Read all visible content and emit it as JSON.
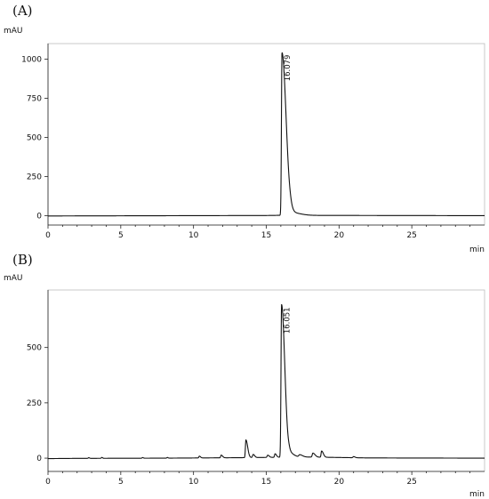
{
  "chart_data": [
    {
      "type": "line",
      "panel_label": "(A)",
      "ylabel": "mAU",
      "xlabel": "min",
      "xlim": [
        0,
        30
      ],
      "ylim": [
        -60,
        1100
      ],
      "x_ticks": [
        0,
        5,
        10,
        15,
        20,
        25
      ],
      "y_ticks": [
        0,
        250,
        500,
        750,
        1000
      ],
      "baseline": [
        [
          0,
          -2
        ],
        [
          5,
          -1
        ],
        [
          10,
          0
        ],
        [
          15,
          1
        ],
        [
          15.8,
          2
        ],
        [
          30,
          0
        ]
      ],
      "peaks": [
        {
          "rt": 16.08,
          "height": 1040,
          "width": 0.09,
          "tail": 0.28,
          "label": "16.079"
        },
        {
          "rt": 16.7,
          "height": 18,
          "width": 0.25,
          "tail": 0.6
        }
      ],
      "annotation": "16.079"
    },
    {
      "type": "line",
      "panel_label": "(B)",
      "ylabel": "mAU",
      "xlabel": "min",
      "xlim": [
        0,
        30
      ],
      "ylim": [
        -60,
        760
      ],
      "x_ticks": [
        0,
        5,
        10,
        15,
        20,
        25
      ],
      "y_ticks": [
        0,
        250,
        500
      ],
      "baseline": [
        [
          0,
          -2
        ],
        [
          2,
          -1
        ],
        [
          8,
          0
        ],
        [
          13,
          2
        ],
        [
          16,
          4
        ],
        [
          18,
          5
        ],
        [
          22,
          1
        ],
        [
          30,
          0
        ]
      ],
      "peaks": [
        {
          "rt": 2.8,
          "height": 3,
          "width": 0.08,
          "tail": 0.05
        },
        {
          "rt": 3.7,
          "height": 4,
          "width": 0.08,
          "tail": 0.05
        },
        {
          "rt": 6.5,
          "height": 3,
          "width": 0.08,
          "tail": 0.05
        },
        {
          "rt": 8.2,
          "height": 3,
          "width": 0.08,
          "tail": 0.05
        },
        {
          "rt": 10.4,
          "height": 8,
          "width": 0.08,
          "tail": 0.08
        },
        {
          "rt": 11.9,
          "height": 12,
          "width": 0.08,
          "tail": 0.1
        },
        {
          "rt": 13.6,
          "height": 80,
          "width": 0.08,
          "tail": 0.12
        },
        {
          "rt": 14.1,
          "height": 14,
          "width": 0.1,
          "tail": 0.1
        },
        {
          "rt": 15.1,
          "height": 10,
          "width": 0.1,
          "tail": 0.1
        },
        {
          "rt": 15.6,
          "height": 16,
          "width": 0.08,
          "tail": 0.1
        },
        {
          "rt": 16.05,
          "height": 690,
          "width": 0.09,
          "tail": 0.22,
          "label": "16.051"
        },
        {
          "rt": 16.6,
          "height": 18,
          "width": 0.2,
          "tail": 0.3
        },
        {
          "rt": 17.3,
          "height": 10,
          "width": 0.15,
          "tail": 0.2
        },
        {
          "rt": 18.2,
          "height": 18,
          "width": 0.1,
          "tail": 0.15
        },
        {
          "rt": 18.8,
          "height": 28,
          "width": 0.08,
          "tail": 0.12
        },
        {
          "rt": 21.0,
          "height": 5,
          "width": 0.1,
          "tail": 0.1
        }
      ],
      "annotation": "16.051"
    }
  ]
}
